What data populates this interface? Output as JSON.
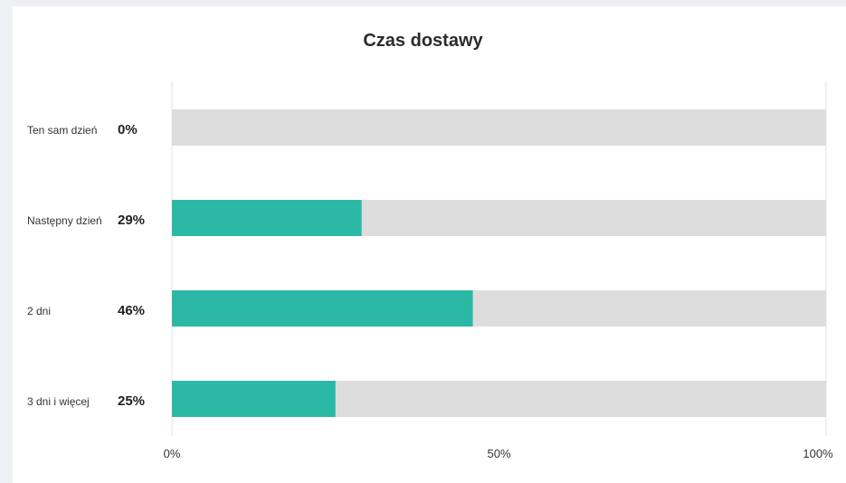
{
  "chart_data": {
    "type": "bar",
    "orientation": "horizontal",
    "stacked_track": true,
    "title": "Czas dostawy",
    "categories": [
      "Ten sam dzień",
      "Następny dzień",
      "2 dni",
      "3 dni i więcej"
    ],
    "values": [
      0,
      29,
      46,
      25
    ],
    "value_labels": [
      "0%",
      "29%",
      "46%",
      "25%"
    ],
    "xlim": [
      0,
      100
    ],
    "x_ticks": [
      "0%",
      "50%",
      "100%"
    ],
    "colors": {
      "bar": "#2bb9a5",
      "track": "#dddddd",
      "gridline": "#e3e3e3"
    }
  }
}
